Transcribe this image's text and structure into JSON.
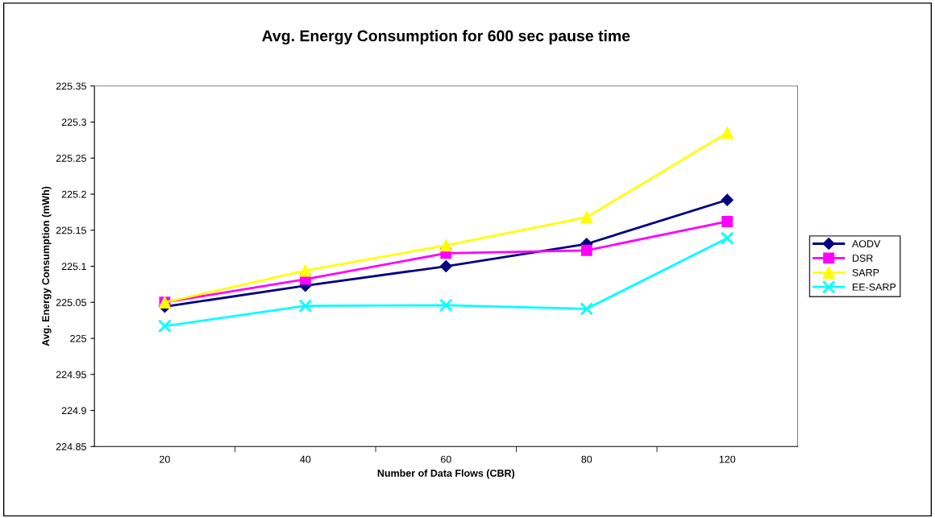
{
  "chart_data": {
    "type": "line",
    "title": "Avg. Energy Consumption for 600 sec pause time",
    "xlabel": "Number of Data Flows (CBR)",
    "ylabel": "Avg. Energy Consumption (mWh)",
    "categories": [
      "20",
      "40",
      "60",
      "80",
      "120"
    ],
    "series": [
      {
        "name": "AODV",
        "color": "#000080",
        "marker": "diamond",
        "values": [
          225.044,
          225.073,
          225.1,
          225.131,
          225.192
        ]
      },
      {
        "name": "DSR",
        "color": "#ff00ff",
        "marker": "square",
        "values": [
          225.05,
          225.082,
          225.118,
          225.122,
          225.162
        ]
      },
      {
        "name": "SARP",
        "color": "#ffff00",
        "marker": "triangle",
        "values": [
          225.05,
          225.094,
          225.129,
          225.168,
          225.285
        ]
      },
      {
        "name": "EE-SARP",
        "color": "#00ffff",
        "marker": "cross",
        "values": [
          225.017,
          225.045,
          225.046,
          225.041,
          225.139
        ]
      }
    ],
    "ylim": [
      224.85,
      225.35
    ],
    "yticks": [
      {
        "value": 224.85,
        "label": "224.85"
      },
      {
        "value": 224.9,
        "label": "224.9"
      },
      {
        "value": 224.95,
        "label": "224.95"
      },
      225,
      {
        "value": 225.05,
        "label": "225.05"
      },
      {
        "value": 225.1,
        "label": "225.1"
      },
      {
        "value": 225.15,
        "label": "225.15"
      },
      {
        "value": 225.2,
        "label": "225.2"
      },
      {
        "value": 225.25,
        "label": "225.25"
      },
      {
        "value": 225.3,
        "label": "225.3"
      },
      {
        "value": 225.35,
        "label": "225.35"
      }
    ],
    "grid": false,
    "legend": "right",
    "line_style": "solid"
  }
}
